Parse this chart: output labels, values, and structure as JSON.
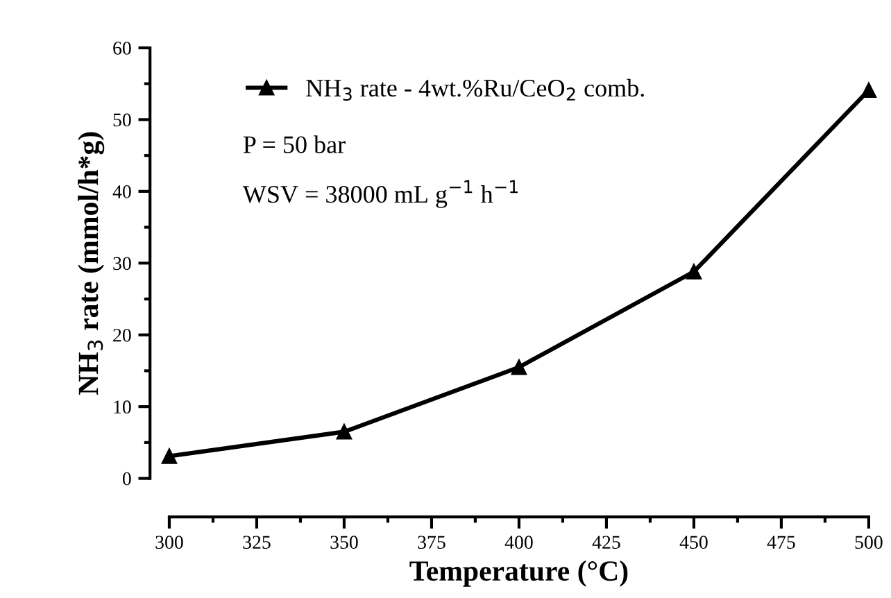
{
  "chart_data": {
    "type": "line",
    "xlabel": "Temperature (°C)",
    "ylabel": "NH$_{3}$ rate (mmol/h*g)",
    "x": [
      300,
      350,
      400,
      450,
      500
    ],
    "series": [
      {
        "name": "NH$_{3}$ rate - 4wt.%Ru/CeO$_{2}$ comb.",
        "color": "#000000",
        "values": [
          3.1,
          6.5,
          15.5,
          28.8,
          54.1
        ]
      }
    ],
    "xlim": [
      300,
      500
    ],
    "xticks": [
      300,
      325,
      350,
      375,
      400,
      425,
      450,
      475,
      500
    ],
    "ylim": [
      0,
      60
    ],
    "yticks": [
      0,
      10,
      20,
      30,
      40,
      50,
      60
    ],
    "annotations": [
      "P = 50 bar",
      "WSV = 38000 mL g$^{−1}$ h$^{−1}$"
    ],
    "marker": "triangle",
    "line_style": "solid",
    "legend": "top left",
    "grid": false
  }
}
